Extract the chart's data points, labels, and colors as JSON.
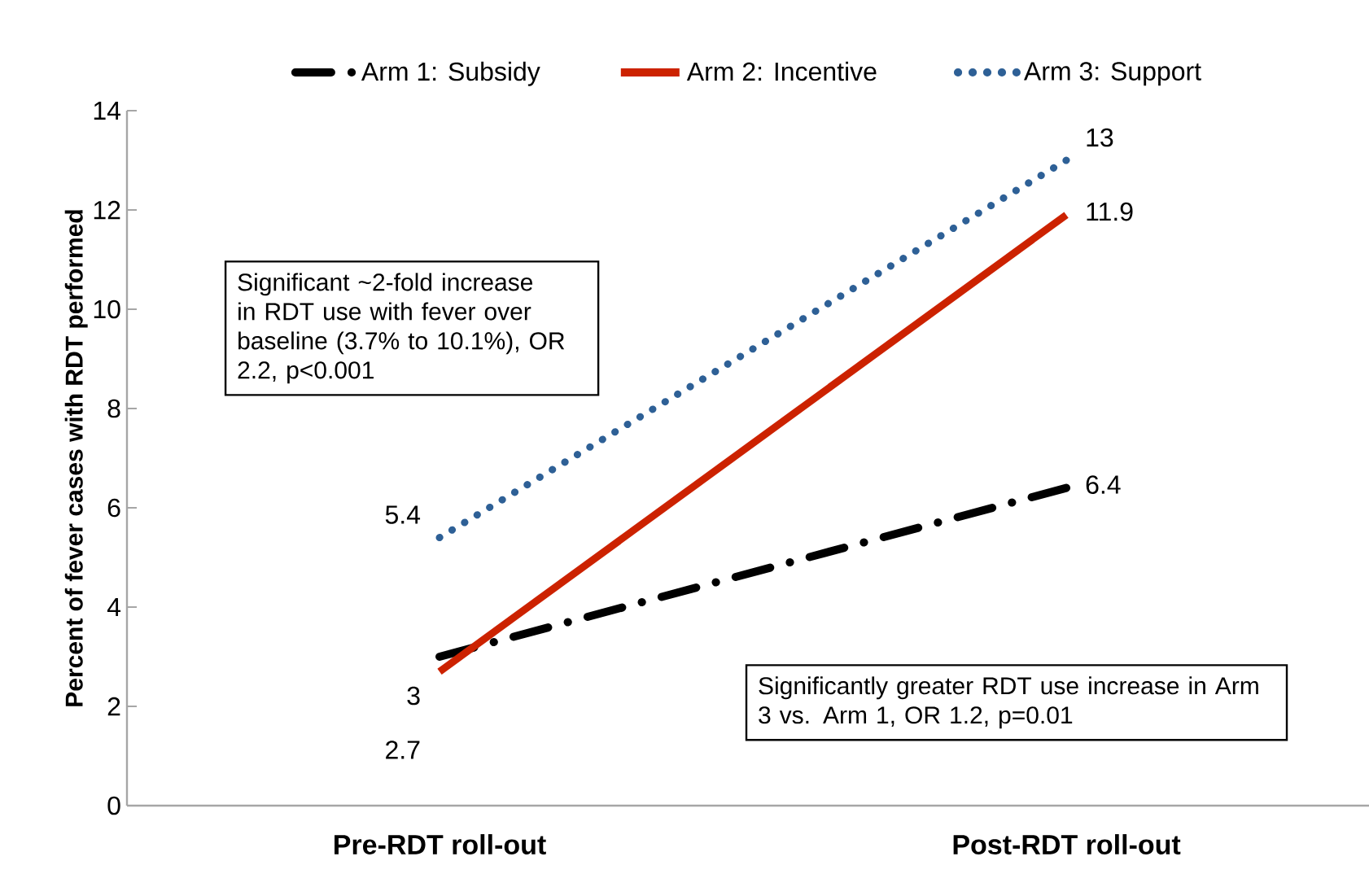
{
  "chart_data": {
    "type": "line",
    "ylabel": "Percent of fever cases with RDT performed",
    "categories": [
      "Pre-RDT roll-out",
      "Post-RDT roll-out"
    ],
    "series": [
      {
        "name": "Arm 1: Subsidy",
        "color": "#000000",
        "values": [
          3,
          6.4
        ],
        "line_style": "dashed"
      },
      {
        "name": "Arm 2: Incentive",
        "color": "#cc2200",
        "values": [
          2.7,
          11.9
        ],
        "line_style": "solid"
      },
      {
        "name": "Arm 3: Support",
        "color": "#2e6096",
        "values": [
          5.4,
          13
        ],
        "line_style": "dotted"
      }
    ],
    "ylim": [
      0,
      14
    ],
    "yticks": [
      0,
      2,
      4,
      6,
      8,
      10,
      12,
      14
    ],
    "grid": false,
    "legend": "top",
    "marker": "none",
    "data_labels": true,
    "annotations": [
      "Significant ~2-fold increase in RDT use with fever over baseline (3.7% to 10.1%), OR 2.2, p<0.001",
      "Significantly greater RDT use increase in Arm 3 vs. Arm 1, OR 1.2, p=0.01"
    ]
  }
}
